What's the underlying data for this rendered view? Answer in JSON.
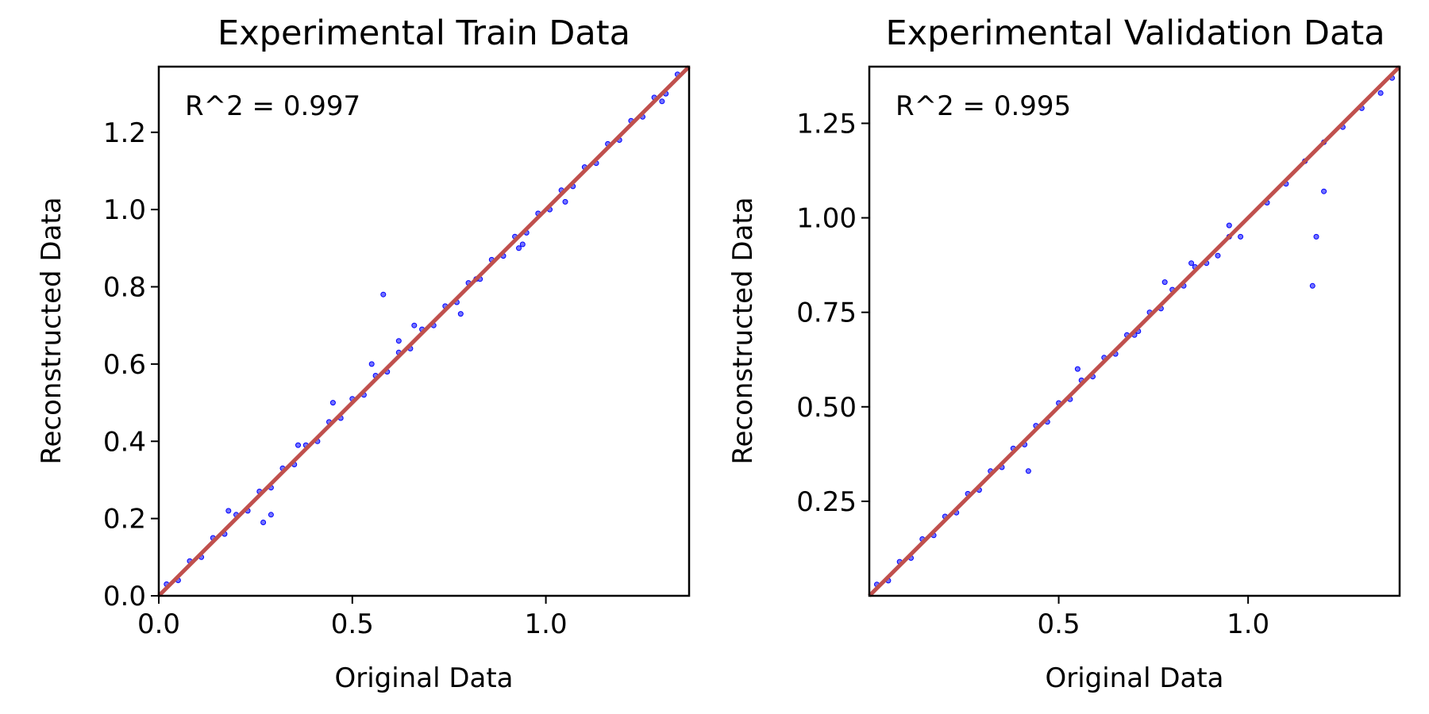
{
  "chart_data": [
    {
      "type": "scatter",
      "title": "Experimental Train Data",
      "xlabel": "Original Data",
      "ylabel": "Reconstructed Data",
      "annotation": "R^2 = 0.997",
      "xlim": [
        0.0,
        1.37
      ],
      "ylim": [
        0.0,
        1.37
      ],
      "xticks": [
        0.0,
        0.5,
        1.0
      ],
      "xtick_labels": [
        "0.0",
        "0.5",
        "1.0"
      ],
      "yticks": [
        0.0,
        0.2,
        0.4,
        0.6,
        0.8,
        1.0,
        1.2
      ],
      "ytick_labels": [
        "0.0",
        "0.2",
        "0.4",
        "0.6",
        "0.8",
        "1.0",
        "1.2"
      ],
      "grid": false,
      "colors": {
        "points": "#0000ff",
        "fit_line": "#c0504d"
      },
      "fit_line": {
        "x": [
          0.0,
          1.37
        ],
        "y": [
          0.0,
          1.37
        ]
      },
      "series": [
        {
          "x": [
            0.02,
            0.05,
            0.08,
            0.11,
            0.14,
            0.17,
            0.2,
            0.23,
            0.26,
            0.29,
            0.32,
            0.35,
            0.38,
            0.41,
            0.44,
            0.47,
            0.5,
            0.53,
            0.56,
            0.59,
            0.62,
            0.65,
            0.68,
            0.71,
            0.74,
            0.77,
            0.8,
            0.83,
            0.86,
            0.89,
            0.92,
            0.95,
            0.98,
            1.01,
            1.04,
            1.07,
            1.1,
            1.13,
            1.16,
            1.19,
            1.22,
            1.25,
            1.28,
            1.31,
            1.34,
            0.18,
            0.27,
            0.36,
            0.58,
            0.62,
            0.66,
            0.78,
            0.82,
            0.94,
            1.05,
            1.3,
            0.29,
            0.45,
            0.55,
            0.93
          ],
          "y": [
            0.03,
            0.04,
            0.09,
            0.1,
            0.15,
            0.16,
            0.21,
            0.22,
            0.27,
            0.28,
            0.33,
            0.34,
            0.39,
            0.4,
            0.45,
            0.46,
            0.51,
            0.52,
            0.57,
            0.58,
            0.63,
            0.64,
            0.69,
            0.7,
            0.75,
            0.76,
            0.81,
            0.82,
            0.87,
            0.88,
            0.93,
            0.94,
            0.99,
            1.0,
            1.05,
            1.06,
            1.11,
            1.12,
            1.17,
            1.18,
            1.23,
            1.24,
            1.29,
            1.3,
            1.35,
            0.22,
            0.19,
            0.39,
            0.78,
            0.66,
            0.7,
            0.73,
            0.82,
            0.91,
            1.02,
            1.28,
            0.21,
            0.5,
            0.6,
            0.9
          ]
        }
      ]
    },
    {
      "type": "scatter",
      "title": "Experimental Validation Data",
      "xlabel": "Original Data",
      "ylabel": "Reconstructed Data",
      "annotation": "R^2 = 0.995",
      "xlim": [
        0.0,
        1.4
      ],
      "ylim": [
        0.0,
        1.4
      ],
      "xticks": [
        0.5,
        1.0
      ],
      "xtick_labels": [
        "0.5",
        "1.0"
      ],
      "yticks": [
        0.25,
        0.5,
        0.75,
        1.0,
        1.25
      ],
      "ytick_labels": [
        "0.25",
        "0.50",
        "0.75",
        "1.00",
        "1.25"
      ],
      "grid": false,
      "colors": {
        "points": "#0000ff",
        "fit_line": "#c0504d"
      },
      "fit_line": {
        "x": [
          0.0,
          1.4
        ],
        "y": [
          0.0,
          1.4
        ]
      },
      "series": [
        {
          "x": [
            0.02,
            0.05,
            0.08,
            0.11,
            0.14,
            0.17,
            0.2,
            0.23,
            0.26,
            0.29,
            0.32,
            0.35,
            0.38,
            0.41,
            0.44,
            0.47,
            0.5,
            0.53,
            0.56,
            0.59,
            0.62,
            0.65,
            0.68,
            0.71,
            0.74,
            0.77,
            0.8,
            0.83,
            0.86,
            0.89,
            0.92,
            0.95,
            0.98,
            1.05,
            1.1,
            1.15,
            1.2,
            1.25,
            1.3,
            1.35,
            1.38,
            0.42,
            0.55,
            0.7,
            0.85,
            0.95,
            1.17,
            1.18,
            1.2,
            0.78
          ],
          "y": [
            0.03,
            0.04,
            0.09,
            0.1,
            0.15,
            0.16,
            0.21,
            0.22,
            0.27,
            0.28,
            0.33,
            0.34,
            0.39,
            0.4,
            0.45,
            0.46,
            0.51,
            0.52,
            0.57,
            0.58,
            0.63,
            0.64,
            0.69,
            0.7,
            0.75,
            0.76,
            0.81,
            0.82,
            0.87,
            0.88,
            0.9,
            0.95,
            0.95,
            1.04,
            1.09,
            1.15,
            1.2,
            1.24,
            1.29,
            1.33,
            1.37,
            0.33,
            0.6,
            0.69,
            0.88,
            0.98,
            0.82,
            0.95,
            1.07,
            0.83
          ]
        }
      ]
    }
  ]
}
